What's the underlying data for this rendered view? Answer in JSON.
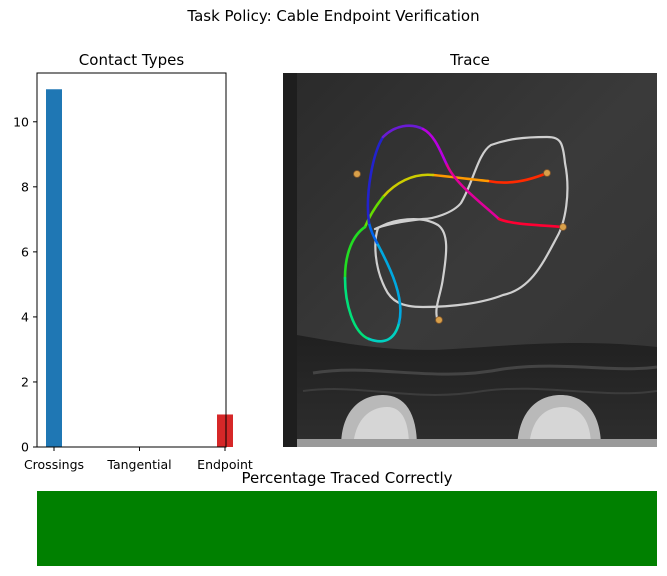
{
  "figure": {
    "suptitle": "Task Policy: Cable Endpoint Verification"
  },
  "chart_data": [
    {
      "type": "bar",
      "title": "Contact Types",
      "categories": [
        "Crossings",
        "Tangential",
        "Endpoint"
      ],
      "values": [
        11,
        0,
        1
      ],
      "colors": [
        "#1f77b4",
        "#1f77b4",
        "#d62728"
      ],
      "ylim": [
        0,
        11.5
      ],
      "yticks": [
        0,
        2,
        4,
        6,
        8,
        10
      ],
      "xlabel": "",
      "ylabel": "",
      "grid": false
    },
    {
      "type": "bar",
      "title": "Percentage Traced Correctly",
      "orientation": "horizontal",
      "values": [
        100
      ],
      "xlim": [
        0,
        100
      ],
      "color": "#008000"
    }
  ],
  "trace_panel": {
    "title": "Trace"
  }
}
